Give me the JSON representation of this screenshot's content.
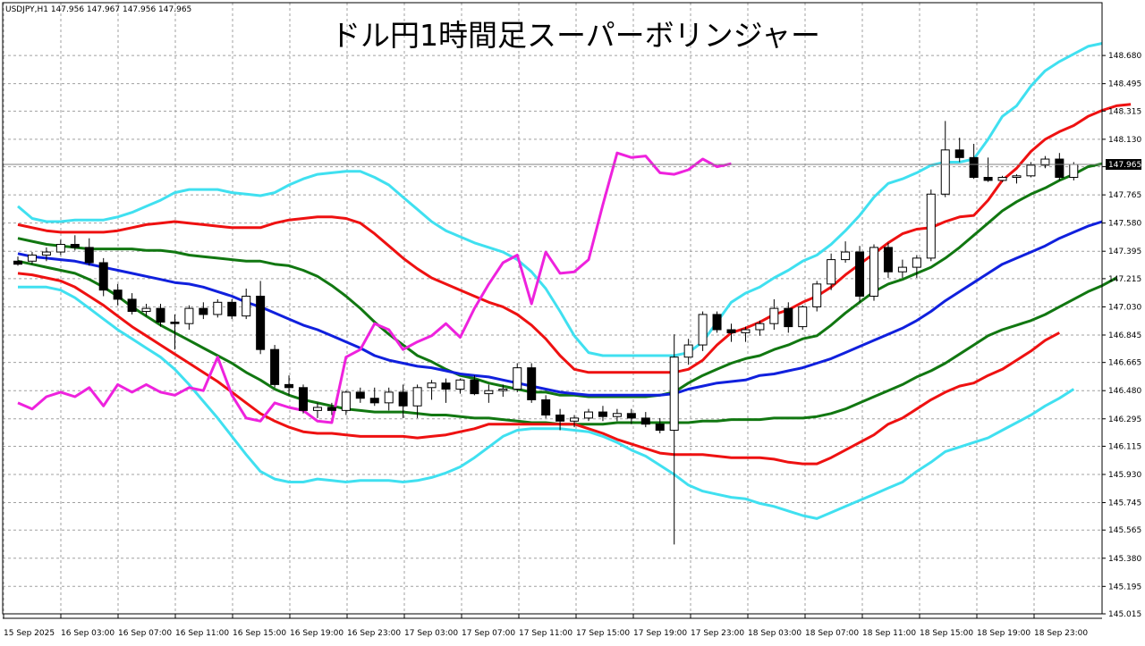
{
  "window": {
    "symbol_info": "USDJPY,H1  147.956 147.967 147.956 147.965",
    "title": "ドル円1時間足スーパーボリンジャー"
  },
  "colors": {
    "background": "#ffffff",
    "grid": "#a0a0a0",
    "candle_up": "#ffffff",
    "candle_down": "#000000",
    "candle_outline": "#000000",
    "sigma3": "#40e0f0",
    "sigma2": "#ee1111",
    "sigma1": "#117711",
    "middle": "#1020dd",
    "chikou": "#ee22dd",
    "price_marker_bg": "#000000",
    "price_marker_text": "#ffffff"
  },
  "chart_data": {
    "type": "candlestick",
    "title": "ドル円1時間足スーパーボリンジャー",
    "symbol": "USDJPY,H1",
    "current_price": "147.965",
    "ylim": [
      145.015,
      148.88
    ],
    "y_ticks": [
      "148.680",
      "148.495",
      "148.315",
      "148.130",
      "147.950",
      "147.765",
      "147.580",
      "147.395",
      "147.215",
      "147.030",
      "146.845",
      "146.665",
      "146.480",
      "146.295",
      "146.115",
      "145.930",
      "145.745",
      "145.565",
      "145.380",
      "145.195",
      "145.015"
    ],
    "x_ticks": [
      "15 Sep 2025",
      "16 Sep 03:00",
      "16 Sep 07:00",
      "16 Sep 11:00",
      "16 Sep 15:00",
      "16 Sep 19:00",
      "16 Sep 23:00",
      "17 Sep 03:00",
      "17 Sep 07:00",
      "17 Sep 11:00",
      "17 Sep 15:00",
      "17 Sep 19:00",
      "17 Sep 23:00",
      "18 Sep 03:00",
      "18 Sep 07:00",
      "18 Sep 11:00",
      "18 Sep 15:00",
      "18 Sep 19:00",
      "18 Sep 23:00"
    ],
    "candles": [
      [
        147.33,
        147.36,
        147.3,
        147.31
      ],
      [
        147.33,
        147.39,
        147.31,
        147.37
      ],
      [
        147.37,
        147.42,
        147.33,
        147.39
      ],
      [
        147.39,
        147.47,
        147.37,
        147.44
      ],
      [
        147.44,
        147.5,
        147.4,
        147.42
      ],
      [
        147.42,
        147.48,
        147.3,
        147.32
      ],
      [
        147.32,
        147.35,
        147.1,
        147.14
      ],
      [
        147.14,
        147.18,
        147.04,
        147.08
      ],
      [
        147.08,
        147.12,
        146.98,
        147.0
      ],
      [
        147.0,
        147.05,
        146.97,
        147.02
      ],
      [
        147.02,
        147.05,
        146.9,
        146.93
      ],
      [
        146.93,
        146.98,
        146.75,
        146.92
      ],
      [
        146.92,
        147.04,
        146.88,
        147.02
      ],
      [
        147.02,
        147.06,
        146.95,
        146.98
      ],
      [
        146.98,
        147.08,
        146.96,
        147.06
      ],
      [
        147.06,
        147.08,
        146.95,
        146.97
      ],
      [
        146.97,
        147.15,
        146.95,
        147.1
      ],
      [
        147.1,
        147.2,
        146.72,
        146.75
      ],
      [
        146.75,
        146.78,
        146.5,
        146.52
      ],
      [
        146.52,
        146.58,
        146.45,
        146.5
      ],
      [
        146.5,
        146.52,
        146.33,
        146.35
      ],
      [
        146.35,
        146.4,
        146.3,
        146.37
      ],
      [
        146.37,
        146.4,
        146.32,
        146.35
      ],
      [
        146.35,
        146.48,
        146.32,
        146.47
      ],
      [
        146.47,
        146.5,
        146.4,
        146.43
      ],
      [
        146.43,
        146.5,
        146.38,
        146.4
      ],
      [
        146.4,
        146.5,
        146.35,
        146.47
      ],
      [
        146.47,
        146.52,
        146.3,
        146.38
      ],
      [
        146.38,
        146.52,
        146.3,
        146.5
      ],
      [
        146.5,
        146.55,
        146.42,
        146.53
      ],
      [
        146.53,
        146.56,
        146.4,
        146.49
      ],
      [
        146.49,
        146.56,
        146.46,
        146.55
      ],
      [
        146.55,
        146.58,
        146.45,
        146.46
      ],
      [
        146.46,
        146.52,
        146.4,
        146.48
      ],
      [
        146.48,
        146.52,
        146.44,
        146.49
      ],
      [
        146.49,
        146.66,
        146.47,
        146.63
      ],
      [
        146.63,
        146.66,
        146.4,
        146.42
      ],
      [
        146.42,
        146.45,
        146.3,
        146.32
      ],
      [
        146.32,
        146.36,
        146.22,
        146.28
      ],
      [
        146.28,
        146.32,
        146.24,
        146.3
      ],
      [
        146.3,
        146.36,
        146.28,
        146.34
      ],
      [
        146.34,
        146.38,
        146.28,
        146.31
      ],
      [
        146.31,
        146.36,
        146.28,
        146.33
      ],
      [
        146.33,
        146.36,
        146.26,
        146.3
      ],
      [
        146.3,
        146.34,
        146.24,
        146.26
      ],
      [
        146.26,
        146.3,
        146.2,
        146.22
      ],
      [
        146.22,
        146.85,
        145.47,
        146.7
      ],
      [
        146.7,
        146.82,
        146.65,
        146.78
      ],
      [
        146.78,
        147.0,
        146.74,
        146.98
      ],
      [
        146.98,
        147.0,
        146.86,
        146.88
      ],
      [
        146.88,
        146.92,
        146.8,
        146.86
      ],
      [
        146.86,
        146.9,
        146.8,
        146.88
      ],
      [
        146.88,
        146.94,
        146.84,
        146.92
      ],
      [
        146.92,
        147.08,
        146.88,
        147.02
      ],
      [
        147.02,
        147.06,
        146.86,
        146.9
      ],
      [
        146.9,
        147.04,
        146.88,
        147.03
      ],
      [
        147.03,
        147.2,
        147.0,
        147.18
      ],
      [
        147.18,
        147.38,
        147.14,
        147.34
      ],
      [
        147.34,
        147.46,
        147.32,
        147.39
      ],
      [
        147.39,
        147.43,
        147.06,
        147.1
      ],
      [
        147.1,
        147.44,
        147.07,
        147.42
      ],
      [
        147.42,
        147.45,
        147.22,
        147.26
      ],
      [
        147.26,
        147.34,
        147.22,
        147.29
      ],
      [
        147.29,
        147.37,
        147.22,
        147.35
      ],
      [
        147.35,
        147.8,
        147.33,
        147.77
      ],
      [
        147.77,
        148.25,
        147.75,
        148.06
      ],
      [
        148.06,
        148.14,
        147.98,
        148.01
      ],
      [
        148.01,
        148.1,
        147.87,
        147.88
      ],
      [
        147.88,
        148.01,
        147.85,
        147.86
      ],
      [
        147.86,
        147.89,
        147.85,
        147.88
      ],
      [
        147.88,
        147.9,
        147.84,
        147.89
      ],
      [
        147.89,
        147.98,
        147.88,
        147.96
      ],
      [
        147.96,
        148.02,
        147.94,
        148.0
      ],
      [
        148.0,
        148.04,
        147.86,
        147.88
      ],
      [
        147.88,
        147.98,
        147.86,
        147.965
      ]
    ],
    "series": [
      {
        "name": "+3σ",
        "color": "#40e0f0",
        "values": [
          147.69,
          147.61,
          147.59,
          147.59,
          147.6,
          147.6,
          147.6,
          147.62,
          147.65,
          147.69,
          147.73,
          147.78,
          147.8,
          147.8,
          147.8,
          147.78,
          147.77,
          147.76,
          147.78,
          147.83,
          147.87,
          147.9,
          147.91,
          147.92,
          147.92,
          147.88,
          147.83,
          147.75,
          147.67,
          147.59,
          147.53,
          147.49,
          147.45,
          147.42,
          147.39,
          147.34,
          147.26,
          147.15,
          147.0,
          146.84,
          146.73,
          146.71,
          146.71,
          146.71,
          146.71,
          146.71,
          146.71,
          146.73,
          146.8,
          146.93,
          147.06,
          147.12,
          147.16,
          147.22,
          147.27,
          147.33,
          147.37,
          147.44,
          147.53,
          147.63,
          147.75,
          147.84,
          147.87,
          147.91,
          147.96,
          147.98,
          147.98,
          148.0,
          148.13,
          148.28,
          148.35,
          148.48,
          148.58,
          148.64,
          148.69,
          148.74,
          148.76
        ]
      },
      {
        "name": "+2σ",
        "color": "#ee1111",
        "values": [
          147.57,
          147.55,
          147.53,
          147.52,
          147.52,
          147.52,
          147.52,
          147.53,
          147.55,
          147.57,
          147.58,
          147.59,
          147.58,
          147.57,
          147.56,
          147.55,
          147.55,
          147.55,
          147.58,
          147.6,
          147.61,
          147.62,
          147.62,
          147.61,
          147.58,
          147.51,
          147.43,
          147.35,
          147.28,
          147.22,
          147.18,
          147.14,
          147.1,
          147.06,
          147.03,
          146.98,
          146.91,
          146.82,
          146.71,
          146.62,
          146.6,
          146.6,
          146.6,
          146.6,
          146.6,
          146.6,
          146.6,
          146.62,
          146.68,
          146.78,
          146.86,
          146.89,
          146.93,
          146.98,
          147.01,
          147.06,
          147.1,
          147.16,
          147.24,
          147.31,
          147.38,
          147.45,
          147.51,
          147.54,
          147.55,
          147.59,
          147.62,
          147.63,
          147.73,
          147.86,
          147.94,
          148.05,
          148.13,
          148.18,
          148.22,
          148.28,
          148.32,
          148.35,
          148.36
        ]
      },
      {
        "name": "+1σ",
        "color": "#117711",
        "values": [
          147.48,
          147.46,
          147.44,
          147.43,
          147.42,
          147.41,
          147.41,
          147.41,
          147.41,
          147.4,
          147.4,
          147.39,
          147.37,
          147.36,
          147.35,
          147.34,
          147.33,
          147.33,
          147.31,
          147.3,
          147.27,
          147.23,
          147.17,
          147.1,
          147.02,
          146.93,
          146.85,
          146.78,
          146.71,
          146.67,
          146.62,
          146.58,
          146.56,
          146.53,
          146.51,
          146.49,
          146.47,
          146.47,
          146.45,
          146.45,
          146.44,
          146.44,
          146.44,
          146.44,
          146.44,
          146.45,
          146.47,
          146.53,
          146.58,
          146.62,
          146.66,
          146.69,
          146.71,
          146.75,
          146.78,
          146.82,
          146.84,
          146.91,
          146.99,
          147.06,
          147.13,
          147.18,
          147.21,
          147.25,
          147.29,
          147.35,
          147.42,
          147.5,
          147.58,
          147.66,
          147.72,
          147.77,
          147.81,
          147.86,
          147.9,
          147.95,
          147.97
        ]
      },
      {
        "name": "middle",
        "color": "#1020dd",
        "values": [
          147.38,
          147.36,
          147.35,
          147.34,
          147.33,
          147.31,
          147.29,
          147.27,
          147.25,
          147.23,
          147.21,
          147.19,
          147.18,
          147.16,
          147.13,
          147.1,
          147.06,
          147.03,
          146.99,
          146.95,
          146.91,
          146.88,
          146.84,
          146.8,
          146.76,
          146.71,
          146.68,
          146.66,
          146.64,
          146.63,
          146.61,
          146.59,
          146.58,
          146.57,
          146.55,
          146.53,
          146.51,
          146.49,
          146.47,
          146.46,
          146.45,
          146.45,
          146.45,
          146.45,
          146.45,
          146.45,
          146.46,
          146.49,
          146.51,
          146.53,
          146.54,
          146.55,
          146.58,
          146.59,
          146.61,
          146.63,
          146.66,
          146.69,
          146.73,
          146.77,
          146.81,
          146.85,
          146.89,
          146.94,
          147.0,
          147.07,
          147.13,
          147.19,
          147.25,
          147.31,
          147.35,
          147.39,
          147.43,
          147.48,
          147.52,
          147.56,
          147.59
        ]
      },
      {
        "name": "-1σ",
        "color": "#117711",
        "values": [
          147.33,
          147.31,
          147.29,
          147.27,
          147.25,
          147.21,
          147.16,
          147.1,
          147.03,
          146.97,
          146.91,
          146.86,
          146.81,
          146.76,
          146.71,
          146.66,
          146.6,
          146.55,
          146.49,
          146.45,
          146.42,
          146.4,
          146.38,
          146.36,
          146.35,
          146.34,
          146.34,
          146.34,
          146.33,
          146.32,
          146.32,
          146.31,
          146.3,
          146.3,
          146.29,
          146.28,
          146.27,
          146.27,
          146.26,
          146.26,
          146.26,
          146.26,
          146.27,
          146.27,
          146.27,
          146.27,
          146.27,
          146.27,
          146.28,
          146.28,
          146.29,
          146.29,
          146.29,
          146.3,
          146.3,
          146.3,
          146.31,
          146.33,
          146.36,
          146.4,
          146.44,
          146.48,
          146.52,
          146.57,
          146.61,
          146.66,
          146.72,
          146.78,
          146.84,
          146.88,
          146.91,
          146.94,
          146.98,
          147.03,
          147.08,
          147.13,
          147.17,
          147.22
        ]
      },
      {
        "name": "-2σ",
        "color": "#ee1111",
        "values": [
          147.25,
          147.24,
          147.22,
          147.2,
          147.16,
          147.1,
          147.04,
          146.97,
          146.9,
          146.84,
          146.78,
          146.72,
          146.66,
          146.6,
          146.54,
          146.47,
          146.4,
          146.33,
          146.28,
          146.24,
          146.21,
          146.2,
          146.2,
          146.19,
          146.18,
          146.18,
          146.18,
          146.18,
          146.17,
          146.18,
          146.19,
          146.21,
          146.23,
          146.26,
          146.26,
          146.26,
          146.26,
          146.26,
          146.26,
          146.26,
          146.23,
          146.2,
          146.16,
          146.13,
          146.1,
          146.07,
          146.06,
          146.06,
          146.06,
          146.05,
          146.04,
          146.04,
          146.04,
          146.03,
          146.01,
          146.0,
          146.0,
          146.04,
          146.09,
          146.14,
          146.19,
          146.26,
          146.3,
          146.36,
          146.42,
          146.47,
          146.51,
          146.53,
          146.58,
          146.62,
          146.68,
          146.74,
          146.81,
          146.86
        ]
      },
      {
        "name": "-3σ",
        "color": "#40e0f0",
        "values": [
          147.16,
          147.16,
          147.16,
          147.14,
          147.09,
          147.02,
          146.95,
          146.88,
          146.82,
          146.76,
          146.7,
          146.62,
          146.52,
          146.41,
          146.3,
          146.18,
          146.06,
          145.95,
          145.9,
          145.88,
          145.88,
          145.9,
          145.89,
          145.88,
          145.89,
          145.89,
          145.89,
          145.88,
          145.89,
          145.91,
          145.94,
          145.98,
          146.04,
          146.11,
          146.18,
          146.22,
          146.23,
          146.23,
          146.23,
          146.22,
          146.21,
          146.18,
          146.14,
          146.09,
          146.05,
          145.99,
          145.93,
          145.86,
          145.82,
          145.8,
          145.78,
          145.77,
          145.74,
          145.72,
          145.69,
          145.66,
          145.64,
          145.68,
          145.72,
          145.76,
          145.8,
          145.84,
          145.88,
          145.95,
          146.01,
          146.08,
          146.11,
          146.14,
          146.17,
          146.22,
          146.27,
          146.32,
          146.38,
          146.43,
          146.49
        ]
      },
      {
        "name": "chikou",
        "color": "#ee22dd",
        "values": [
          146.4,
          146.36,
          146.44,
          146.47,
          146.44,
          146.5,
          146.38,
          146.52,
          146.47,
          146.52,
          146.47,
          146.45,
          146.5,
          146.48,
          146.7,
          146.45,
          146.3,
          146.28,
          146.4,
          146.37,
          146.35,
          146.28,
          146.27,
          146.7,
          146.75,
          146.92,
          146.88,
          146.75,
          146.8,
          146.84,
          146.92,
          146.83,
          147.02,
          147.18,
          147.32,
          147.37,
          147.05,
          147.39,
          147.25,
          147.26,
          147.34,
          147.7,
          148.04,
          148.01,
          148.02,
          147.91,
          147.9,
          147.93,
          148.0,
          147.95,
          147.97
        ]
      }
    ]
  }
}
